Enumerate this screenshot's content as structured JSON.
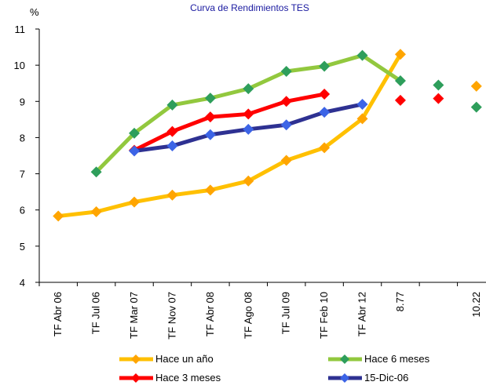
{
  "chart_data": {
    "type": "line",
    "title": "Curva de Rendimientos TES",
    "ylabel": "%",
    "xlabel": "",
    "categories": [
      "TF Abr 06",
      "TF Jul 06",
      "TF Mar 07",
      "TF Nov 07",
      "TF Abr 08",
      "TF Ago 08",
      "TF Jul 09",
      "TF Feb 10",
      "TF Abr 12",
      "8.77",
      "",
      "10.22"
    ],
    "ylim": [
      4,
      11
    ],
    "yticks": [
      "4",
      "5",
      "6",
      "7",
      "8",
      "9",
      "10",
      "11"
    ],
    "grid": false,
    "legend_position": "bottom",
    "series": [
      {
        "name": "Hace un año",
        "color": "#FFC000",
        "marker_color": "#FFA500",
        "line_values": [
          5.83,
          5.95,
          6.22,
          6.41,
          6.55,
          6.8,
          7.37,
          7.72,
          8.52,
          10.3,
          null,
          null
        ],
        "marker_only_values": [
          null,
          null,
          null,
          null,
          null,
          null,
          null,
          null,
          null,
          null,
          null,
          9.42
        ]
      },
      {
        "name": "Hace 6 meses",
        "color": "#92C83E",
        "marker_color": "#2E9E5B",
        "line_values": [
          null,
          7.05,
          8.12,
          8.9,
          9.09,
          9.35,
          9.83,
          9.97,
          10.27,
          9.57,
          null,
          null
        ],
        "marker_only_values": [
          null,
          null,
          null,
          null,
          null,
          null,
          null,
          null,
          null,
          null,
          9.45,
          8.84
        ]
      },
      {
        "name": "Hace 3 meses",
        "color": "#FF0000",
        "marker_color": "#FF0000",
        "line_values": [
          null,
          null,
          7.65,
          8.17,
          8.57,
          8.65,
          9.0,
          9.2,
          null,
          null,
          null,
          null
        ],
        "marker_only_values": [
          null,
          null,
          null,
          null,
          null,
          null,
          null,
          null,
          null,
          9.03,
          9.08,
          null
        ]
      },
      {
        "name": "15-Dic-06",
        "color": "#2E3192",
        "marker_color": "#3C64E6",
        "line_values": [
          null,
          null,
          7.63,
          7.77,
          8.08,
          8.23,
          8.35,
          8.7,
          8.92,
          null,
          null,
          null
        ],
        "marker_only_values": [
          null,
          null,
          null,
          null,
          null,
          null,
          null,
          null,
          null,
          null,
          null,
          null
        ]
      }
    ]
  }
}
